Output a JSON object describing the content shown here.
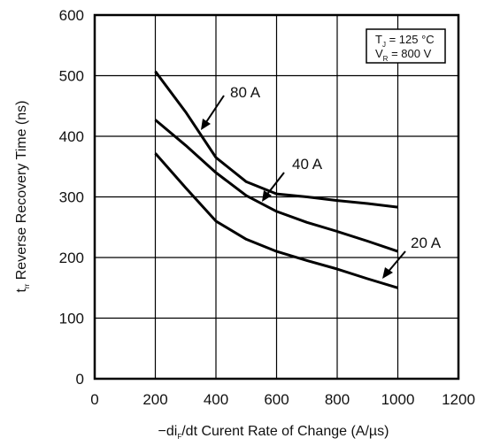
{
  "chart_data": {
    "type": "line",
    "xlabel": {
      "prefix": "−di",
      "sub": "F",
      "suffix": "/dt Curent Rate of Change (A/µs)"
    },
    "ylabel": {
      "prefix": "t",
      "sub": "rr",
      "suffix": " Reverse Recovery Time (ns)"
    },
    "xlim": [
      0,
      1200
    ],
    "ylim": [
      0,
      600
    ],
    "xticks": [
      "0",
      "200",
      "400",
      "600",
      "800",
      "1000",
      "1200"
    ],
    "yticks": [
      "0",
      "100",
      "200",
      "300",
      "400",
      "500",
      "600"
    ],
    "grid": true,
    "conditions": [
      {
        "prefix": "T",
        "sub": "J",
        "suffix": " = 125 °C"
      },
      {
        "prefix": "V",
        "sub": "R",
        "suffix": " = 800 V"
      }
    ],
    "series": [
      {
        "name": "80 A",
        "x": [
          200,
          300,
          400,
          500,
          600,
          700,
          800,
          900,
          1000
        ],
        "y": [
          507,
          440,
          365,
          325,
          305,
          300,
          294,
          289,
          283
        ]
      },
      {
        "name": "40 A",
        "x": [
          200,
          300,
          400,
          500,
          600,
          700,
          800,
          900,
          1000
        ],
        "y": [
          427,
          385,
          340,
          302,
          276,
          258,
          243,
          227,
          210
        ]
      },
      {
        "name": "20 A",
        "x": [
          200,
          300,
          400,
          500,
          600,
          700,
          800,
          900,
          1000
        ],
        "y": [
          372,
          315,
          260,
          230,
          210,
          195,
          181,
          165,
          150
        ]
      }
    ]
  }
}
